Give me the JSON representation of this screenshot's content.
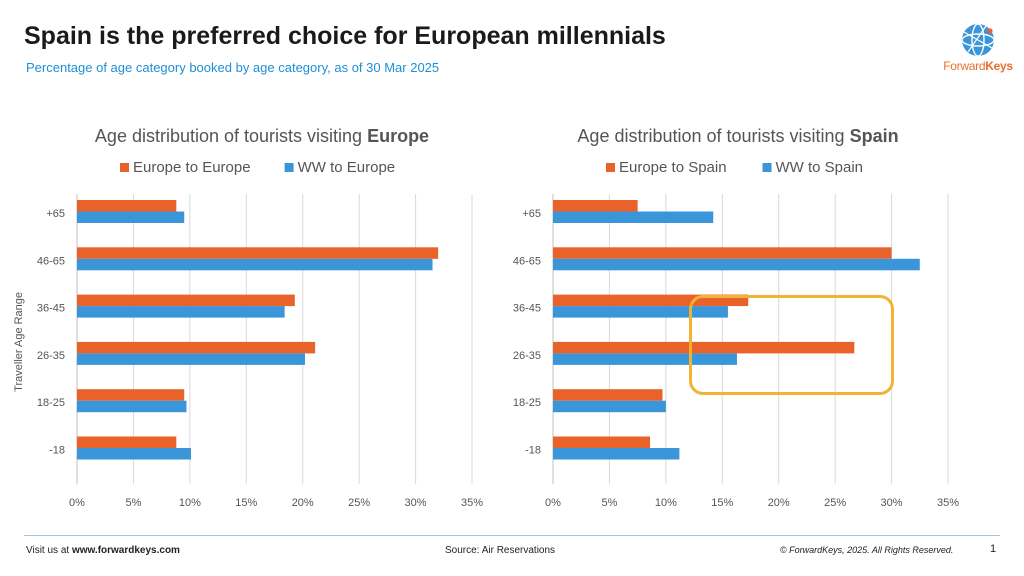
{
  "header": {
    "title": "Spain is the preferred choice for European millennials",
    "subtitle": "Percentage of age category booked by age category, as of 30 Mar 2025"
  },
  "logo": {
    "text_part1": "Forward",
    "text_part2": "Keys",
    "icon": "globe-network-icon"
  },
  "footer": {
    "visit_prefix": "Visit us at ",
    "visit_url": "www.forwardkeys.com",
    "source": "Source: Air Reservations",
    "copyright": "© ForwardKeys, 2025. All Rights Reserved.",
    "page_number": "1"
  },
  "colors": {
    "series_a": "#e8622a",
    "series_b": "#3a96d8",
    "highlight": "#f2b233"
  },
  "chart_data": [
    {
      "type": "bar",
      "orientation": "horizontal",
      "title_prefix": "Age distribution of tourists visiting ",
      "title_bold": "Europe",
      "ylabel": "Traveller Age Range",
      "categories": [
        "+65",
        "46-65",
        "36-45",
        "26-35",
        "18-25",
        "-18"
      ],
      "xlim": [
        0,
        35
      ],
      "xticks": [
        "0%",
        "5%",
        "10%",
        "15%",
        "20%",
        "25%",
        "30%",
        "35%"
      ],
      "grid": true,
      "legend_position": "top",
      "series": [
        {
          "name": "Europe to Europe",
          "values": [
            8.8,
            32,
            19.3,
            21.1,
            9.5,
            8.8
          ]
        },
        {
          "name": "WW to Europe",
          "values": [
            9.5,
            31.5,
            18.4,
            20.2,
            9.7,
            10.1
          ]
        }
      ]
    },
    {
      "type": "bar",
      "orientation": "horizontal",
      "title_prefix": "Age distribution of tourists visiting ",
      "title_bold": "Spain",
      "categories": [
        "+65",
        "46-65",
        "36-45",
        "26-35",
        "18-25",
        "-18"
      ],
      "xlim": [
        0,
        35
      ],
      "xticks": [
        "0%",
        "5%",
        "10%",
        "15%",
        "20%",
        "25%",
        "30%",
        "35%"
      ],
      "grid": true,
      "legend_position": "top",
      "series": [
        {
          "name": "Europe to Spain",
          "values": [
            7.5,
            30,
            17.3,
            26.7,
            9.7,
            8.6
          ]
        },
        {
          "name": "WW to Spain",
          "values": [
            14.2,
            32.5,
            15.5,
            16.3,
            10.0,
            11.2
          ]
        }
      ]
    }
  ]
}
